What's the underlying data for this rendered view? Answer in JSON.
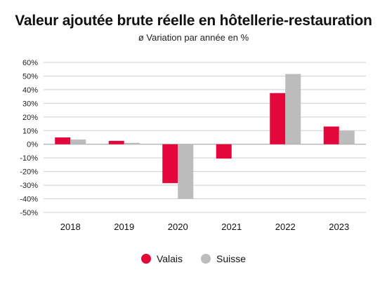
{
  "chart_data": {
    "type": "bar",
    "title": "Valeur ajoutée brute réelle en hôtellerie-restauration",
    "subtitle": "ø Variation par année en %",
    "categories": [
      "2018",
      "2019",
      "2020",
      "2021",
      "2022",
      "2023"
    ],
    "series": [
      {
        "name": "Valais",
        "values": [
          5,
          2.5,
          -28.5,
          -10.5,
          37.5,
          13
        ],
        "color": "#e3073b"
      },
      {
        "name": "Suisse",
        "values": [
          3.5,
          1,
          -40,
          null,
          51.5,
          10
        ],
        "color": "#bcbcbc"
      }
    ],
    "ylim": [
      -50,
      60
    ],
    "yticks": [
      60,
      50,
      40,
      30,
      20,
      10,
      0,
      -10,
      -20,
      -30,
      -40,
      -50
    ],
    "ytick_labels": [
      "60%",
      "50%",
      "40%",
      "30%",
      "20%",
      "10%",
      "0%",
      "-10%",
      "-20%",
      "-30%",
      "-40%",
      "-50%"
    ],
    "grid": true,
    "legend_position": "bottom-center"
  }
}
